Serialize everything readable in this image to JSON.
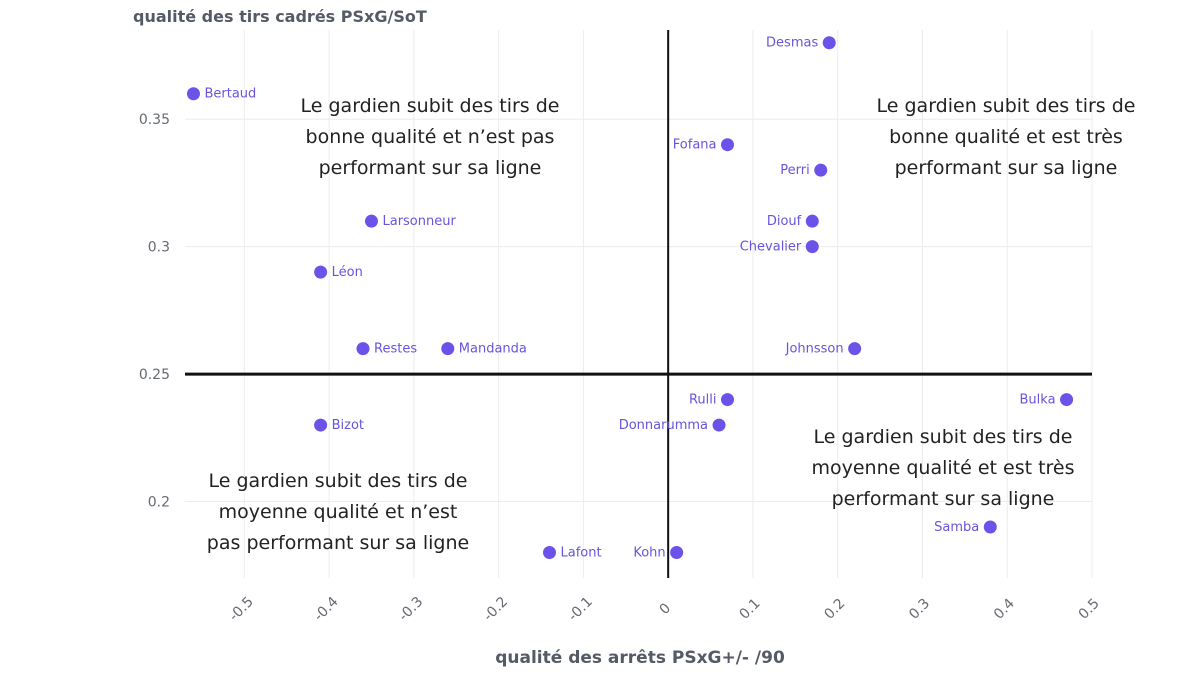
{
  "chart_data": {
    "type": "scatter",
    "title": "",
    "ylabel": "qualité des tirs cadrés PSxG/SoT",
    "xlabel": "qualité des arrêts PSxG+/- /90",
    "xlim": [
      -0.57,
      0.5
    ],
    "ylim": [
      0.17,
      0.385
    ],
    "xticks": [
      -0.5,
      -0.4,
      -0.3,
      -0.2,
      -0.1,
      0,
      0.1,
      0.2,
      0.3,
      0.4,
      0.5
    ],
    "xtick_labels": [
      "-0.5",
      "-0.4",
      "-0.3",
      "-0.2",
      "-0.1",
      "0",
      "0.1",
      "0.2",
      "0.3",
      "0.4",
      "0.5"
    ],
    "yticks": [
      0.2,
      0.25,
      0.3,
      0.35
    ],
    "ytick_labels": [
      "0.2",
      "0.25",
      "0.3",
      "0.35"
    ],
    "grid": true,
    "reference_lines": {
      "x": 0,
      "y": 0.25
    },
    "point_color": "#6c52e8",
    "points": [
      {
        "name": "Desmas",
        "x": 0.19,
        "y": 0.38,
        "label_side": "left"
      },
      {
        "name": "Bertaud",
        "x": -0.56,
        "y": 0.36,
        "label_side": "right"
      },
      {
        "name": "Fofana",
        "x": 0.07,
        "y": 0.34,
        "label_side": "left"
      },
      {
        "name": "Perri",
        "x": 0.18,
        "y": 0.33,
        "label_side": "left"
      },
      {
        "name": "Larsonneur",
        "x": -0.35,
        "y": 0.31,
        "label_side": "right"
      },
      {
        "name": "Diouf",
        "x": 0.17,
        "y": 0.31,
        "label_side": "left"
      },
      {
        "name": "Chevalier",
        "x": 0.17,
        "y": 0.3,
        "label_side": "left"
      },
      {
        "name": "Léon",
        "x": -0.41,
        "y": 0.29,
        "label_side": "right"
      },
      {
        "name": "Restes",
        "x": -0.36,
        "y": 0.26,
        "label_side": "right"
      },
      {
        "name": "Mandanda",
        "x": -0.26,
        "y": 0.26,
        "label_side": "right"
      },
      {
        "name": "Johnsson",
        "x": 0.22,
        "y": 0.26,
        "label_side": "left"
      },
      {
        "name": "Rulli",
        "x": 0.07,
        "y": 0.24,
        "label_side": "left"
      },
      {
        "name": "Bulka",
        "x": 0.47,
        "y": 0.24,
        "label_side": "left"
      },
      {
        "name": "Bizot",
        "x": -0.41,
        "y": 0.23,
        "label_side": "right"
      },
      {
        "name": "Donnarumma",
        "x": 0.06,
        "y": 0.23,
        "label_side": "left"
      },
      {
        "name": "Samba",
        "x": 0.38,
        "y": 0.19,
        "label_side": "left"
      },
      {
        "name": "Lafont",
        "x": -0.14,
        "y": 0.18,
        "label_side": "right"
      },
      {
        "name": "Kohn",
        "x": 0.01,
        "y": 0.18,
        "label_side": "left"
      }
    ],
    "annotations": [
      {
        "id": "top-left",
        "lines": [
          "Le gardien subit des tirs de",
          "bonne qualité et n’est pas",
          "performant sur sa ligne"
        ]
      },
      {
        "id": "top-right",
        "lines": [
          "Le gardien subit des tirs de",
          "bonne qualité et est très",
          "performant sur sa ligne"
        ]
      },
      {
        "id": "bottom-right",
        "lines": [
          "Le gardien subit des tirs de",
          "moyenne qualité et est très",
          "performant sur sa ligne"
        ]
      },
      {
        "id": "bottom-left",
        "lines": [
          "Le gardien subit des tirs de",
          "moyenne qualité et n’est",
          "pas performant sur sa ligne"
        ]
      }
    ]
  }
}
